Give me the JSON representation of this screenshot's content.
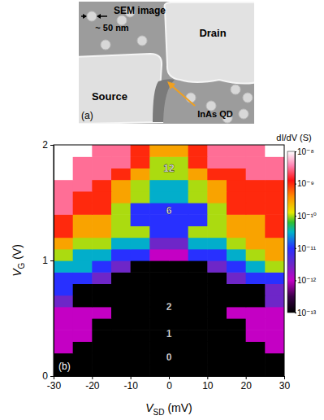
{
  "image_panel": {
    "title": "SEM image",
    "scale_bar": "~ 50 nm",
    "source": "Source",
    "drain": "Drain",
    "dot": "InAs QD",
    "panel_label": "(a)"
  },
  "chart_data": {
    "type": "heatmap",
    "panel_label": "(b)",
    "xlabel": "VSD (mV)",
    "ylabel": "VG (V)",
    "xlim": [
      -30,
      30
    ],
    "ylim": [
      0,
      2
    ],
    "xticks": [
      -30,
      -20,
      -10,
      0,
      10,
      20,
      30
    ],
    "yticks": [
      0,
      1,
      2
    ],
    "xbins": [
      -30,
      -25,
      -20,
      -15,
      -10,
      -5,
      0,
      5,
      10,
      15,
      20,
      25,
      30
    ],
    "ybins": [
      0,
      0.1,
      0.2,
      0.3,
      0.4,
      0.5,
      0.6,
      0.7,
      0.8,
      0.9,
      1.0,
      1.1,
      1.2,
      1.3,
      1.4,
      1.5,
      1.6,
      1.7,
      1.8,
      1.9,
      2.0
    ],
    "cells": [
      [
        1e-13,
        1e-13,
        1e-13,
        1e-13,
        1e-13,
        1e-13,
        1e-13,
        1e-13,
        1e-13,
        1e-13,
        1e-13,
        1e-13
      ],
      [
        1e-13,
        1e-13,
        1e-13,
        1e-13,
        1e-13,
        1e-13,
        1e-13,
        1e-13,
        1e-13,
        1e-13,
        1e-13,
        1e-13
      ],
      [
        1e-12,
        1e-13,
        1e-13,
        1e-13,
        1e-13,
        1e-13,
        1e-13,
        1e-13,
        1e-13,
        1e-13,
        1e-13,
        1e-12
      ],
      [
        1e-12,
        1e-12,
        1e-13,
        1e-13,
        1e-13,
        1e-13,
        1e-13,
        1e-13,
        1e-13,
        1e-13,
        1e-12,
        1e-12
      ],
      [
        1e-12,
        1e-12,
        1e-13,
        1e-13,
        1e-13,
        1e-13,
        1e-13,
        1e-13,
        1e-13,
        1e-13,
        1e-12,
        1e-12
      ],
      [
        1e-12,
        1e-12,
        1e-12,
        1e-13,
        1e-13,
        1e-13,
        1e-13,
        1e-13,
        1e-13,
        1e-12,
        1e-12,
        1e-12
      ],
      [
        3e-12,
        1e-13,
        1e-13,
        1e-13,
        1e-13,
        1e-13,
        1e-13,
        1e-13,
        1e-13,
        1e-13,
        1e-13,
        3e-12
      ],
      [
        1e-11,
        1e-13,
        1e-13,
        1e-13,
        1e-13,
        1e-13,
        1e-13,
        1e-13,
        1e-13,
        1e-13,
        1e-13,
        3e-12
      ],
      [
        1e-11,
        1e-11,
        3e-12,
        1e-13,
        1e-13,
        1e-13,
        1e-13,
        1e-13,
        1e-13,
        3e-12,
        1e-11,
        1e-11
      ],
      [
        3e-11,
        3e-11,
        1e-11,
        3e-12,
        1e-13,
        1e-13,
        1e-13,
        1e-13,
        3e-12,
        1e-11,
        3e-11,
        1e-10
      ],
      [
        1e-10,
        3e-11,
        3e-11,
        1e-11,
        1e-11,
        1e-12,
        1e-12,
        1e-11,
        1e-11,
        3e-11,
        1e-10,
        3e-10
      ],
      [
        3e-10,
        1e-10,
        1e-10,
        3e-11,
        3e-11,
        3e-12,
        3e-12,
        3e-11,
        3e-11,
        1e-10,
        3e-10,
        3e-10
      ],
      [
        1e-09,
        3e-10,
        3e-10,
        1e-10,
        1e-10,
        1e-11,
        1e-11,
        1e-10,
        1e-10,
        3e-10,
        3e-10,
        1e-09
      ],
      [
        1e-09,
        3e-10,
        3e-10,
        1e-10,
        1e-11,
        1e-11,
        1e-11,
        1e-11,
        1e-10,
        3e-10,
        3e-10,
        1e-09
      ],
      [
        3e-09,
        1e-09,
        1e-09,
        1e-10,
        1e-11,
        1e-11,
        1e-11,
        1e-11,
        1e-10,
        1e-09,
        1e-09,
        1e-09
      ],
      [
        3e-09,
        1e-09,
        1e-09,
        3e-10,
        1e-10,
        3e-11,
        3e-11,
        1e-10,
        3e-10,
        1e-09,
        1e-09,
        1e-09
      ],
      [
        3e-09,
        3e-09,
        1e-09,
        3e-10,
        1e-10,
        3e-11,
        3e-11,
        1e-10,
        3e-10,
        1e-09,
        1e-09,
        1e-09
      ],
      [
        1e-08,
        3e-09,
        3e-09,
        1e-09,
        3e-10,
        1e-10,
        1e-10,
        3e-10,
        1e-09,
        1e-09,
        3e-09,
        3e-09
      ],
      [
        1e-08,
        3e-09,
        3e-09,
        3e-09,
        1e-09,
        1e-10,
        1e-10,
        1e-09,
        3e-09,
        3e-09,
        3e-09,
        3e-09
      ],
      [
        1e-08,
        1e-08,
        3e-09,
        3e-09,
        1e-09,
        3e-10,
        3e-10,
        1e-09,
        3e-09,
        3e-09,
        3e-09,
        1e-08
      ]
    ],
    "colorbar_label": "dI/dV (S)",
    "colorbar_range": [
      1e-13,
      1e-08
    ],
    "colorbar_ticks": [
      {
        "value": 1e-08,
        "label": "10⁻⁸"
      },
      {
        "value": 1e-09,
        "label": "10⁻⁹"
      },
      {
        "value": 1e-10,
        "label": "10⁻¹⁰"
      },
      {
        "value": 1e-11,
        "label": "10⁻¹¹"
      },
      {
        "value": 1e-12,
        "label": "10⁻¹²"
      },
      {
        "value": 1e-13,
        "label": "10⁻¹³"
      }
    ],
    "annotations": [
      {
        "text": "0",
        "x": 0,
        "y": 0.16
      },
      {
        "text": "1",
        "x": 0,
        "y": 0.37
      },
      {
        "text": "2",
        "x": 0,
        "y": 0.6
      },
      {
        "text": "6",
        "x": 0,
        "y": 1.43
      },
      {
        "text": "12",
        "x": 0,
        "y": 1.8
      }
    ]
  }
}
